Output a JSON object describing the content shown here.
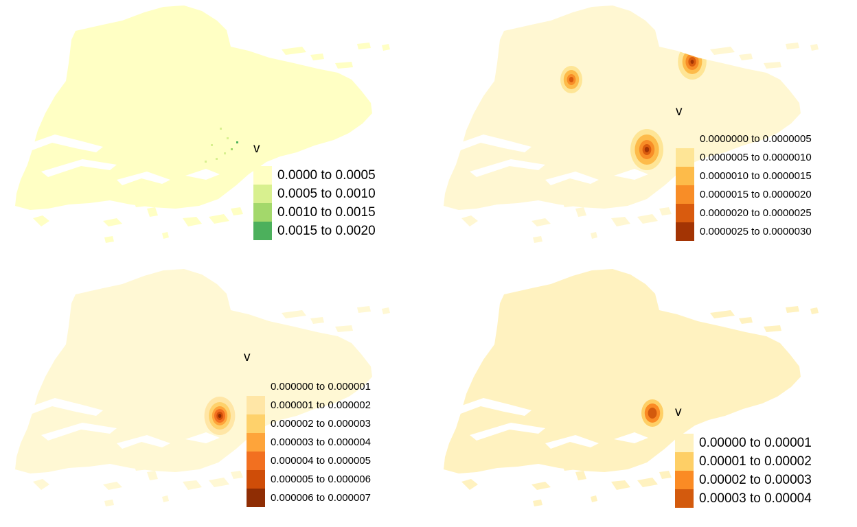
{
  "panels": [
    {
      "title": "v",
      "palette": [
        "#ffffc4",
        "#d8f08f",
        "#a3d86b",
        "#4cb05c"
      ],
      "base_color": "#ffffc4",
      "legend": [
        {
          "label": "0.0000 to 0.0005",
          "color": "#ffffc4"
        },
        {
          "label": "0.0005 to 0.0010",
          "color": "#d8f08f"
        },
        {
          "label": "0.0010 to 0.0015",
          "color": "#a3d86b"
        },
        {
          "label": "0.0015 to 0.0020",
          "color": "#4cb05c"
        }
      ]
    },
    {
      "title": "v",
      "palette": [
        "#fff7d2",
        "#fee596",
        "#fdbb4a",
        "#f88d27",
        "#d95b0e",
        "#a33404"
      ],
      "base_color": "#fff7d2",
      "legend": [
        {
          "label": "0.0000000 to 0.0000005",
          "color": "#fff7d2"
        },
        {
          "label": "0.0000005 to 0.0000010",
          "color": "#fee596"
        },
        {
          "label": "0.0000010 to 0.0000015",
          "color": "#fdbb4a"
        },
        {
          "label": "0.0000015 to 0.0000020",
          "color": "#f88d27"
        },
        {
          "label": "0.0000020 to 0.0000025",
          "color": "#d95b0e"
        },
        {
          "label": "0.0000025 to 0.0000030",
          "color": "#a33404"
        }
      ]
    },
    {
      "title": "v",
      "palette": [
        "#fff8d4",
        "#ffe6a6",
        "#fed16b",
        "#fea43a",
        "#f27020",
        "#cf4d08",
        "#8f2d04"
      ],
      "base_color": "#fff8d4",
      "legend": [
        {
          "label": "0.000000 to 0.000001",
          "color": "#fff8d4"
        },
        {
          "label": "0.000001 to 0.000002",
          "color": "#ffe6a6"
        },
        {
          "label": "0.000002 to 0.000003",
          "color": "#fed16b"
        },
        {
          "label": "0.000003 to 0.000004",
          "color": "#fea43a"
        },
        {
          "label": "0.000004 to 0.000005",
          "color": "#f27020"
        },
        {
          "label": "0.000005 to 0.000006",
          "color": "#cf4d08"
        },
        {
          "label": "0.000006 to 0.000007",
          "color": "#8f2d04"
        }
      ]
    },
    {
      "title": "v",
      "palette": [
        "#fff2c0",
        "#fecf66",
        "#fb8b24",
        "#d35a0d"
      ],
      "base_color": "#fff2c0",
      "legend": [
        {
          "label": "0.00000 to 0.00001",
          "color": "#fff2c0"
        },
        {
          "label": "0.00001 to 0.00002",
          "color": "#fecf66"
        },
        {
          "label": "0.00002 to 0.00003",
          "color": "#fb8b24"
        },
        {
          "label": "0.00003 to 0.00004",
          "color": "#d35a0d"
        }
      ]
    }
  ]
}
